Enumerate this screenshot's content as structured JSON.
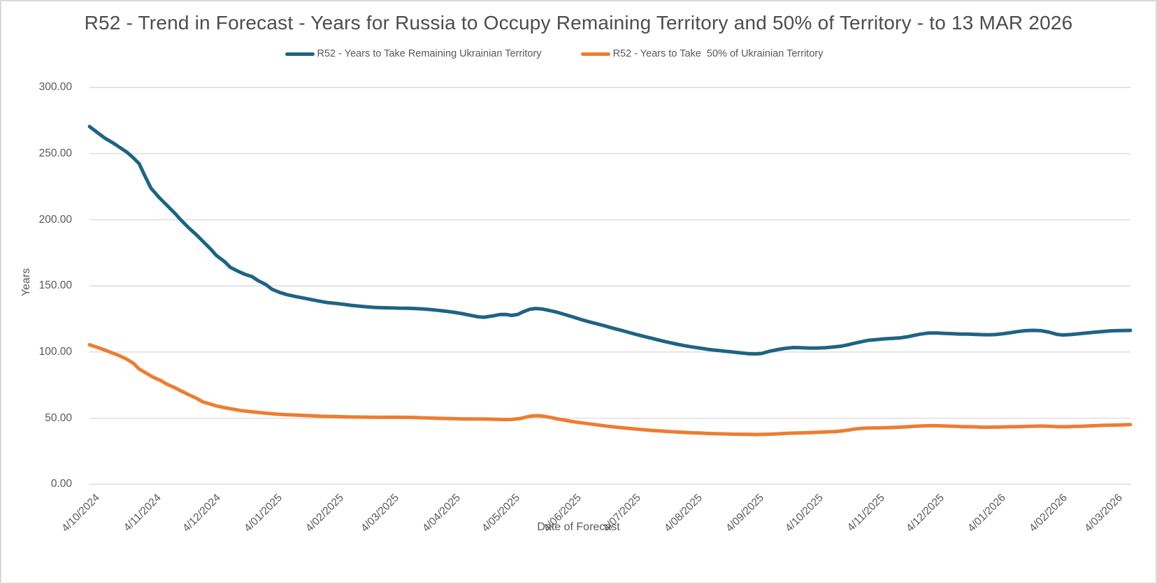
{
  "window": {
    "background": "#ffffff",
    "border_color": "#d9d9d9"
  },
  "chart_data": {
    "type": "line",
    "title": "R52 - Trend in Forecast - Years for Russia to Occupy Remaining Territory and 50% of Territory - to 13 MAR 2026",
    "xlabel": "Date of Forecast",
    "ylabel": "Years",
    "ylim": [
      0,
      300
    ],
    "grid": true,
    "legend_position": "top",
    "gridline_color": "#d9d9d9",
    "y_ticks": [
      {
        "label": "0.00",
        "value": 0
      },
      {
        "label": "50.00",
        "value": 50
      },
      {
        "label": "100.00",
        "value": 100
      },
      {
        "label": "150.00",
        "value": 150
      },
      {
        "label": "200.00",
        "value": 200
      },
      {
        "label": "250.00",
        "value": 250
      },
      {
        "label": "300.00",
        "value": 300
      }
    ],
    "x_total_days": 525,
    "x_ticks": [
      {
        "label": "4/10/2024",
        "day": 0
      },
      {
        "label": "4/11/2024",
        "day": 31
      },
      {
        "label": "4/12/2024",
        "day": 61
      },
      {
        "label": "4/01/2025",
        "day": 92
      },
      {
        "label": "4/02/2025",
        "day": 123
      },
      {
        "label": "4/03/2025",
        "day": 151
      },
      {
        "label": "4/04/2025",
        "day": 182
      },
      {
        "label": "4/05/2025",
        "day": 212
      },
      {
        "label": "4/06/2025",
        "day": 243
      },
      {
        "label": "4/07/2025",
        "day": 273
      },
      {
        "label": "4/08/2025",
        "day": 304
      },
      {
        "label": "4/09/2025",
        "day": 335
      },
      {
        "label": "4/10/2025",
        "day": 365
      },
      {
        "label": "4/11/2025",
        "day": 396
      },
      {
        "label": "4/12/2025",
        "day": 426
      },
      {
        "label": "4/01/2026",
        "day": 457
      },
      {
        "label": "4/02/2026",
        "day": 488
      },
      {
        "label": "4/03/2026",
        "day": 516
      }
    ],
    "series": [
      {
        "name": "R52 - Years to Take Remaining Ukrainian Territory",
        "color": "#1f6384",
        "points": [
          [
            0,
            270.5
          ],
          [
            4,
            266
          ],
          [
            8,
            261.5
          ],
          [
            12,
            258
          ],
          [
            16,
            254
          ],
          [
            19,
            251
          ],
          [
            22,
            247
          ],
          [
            25,
            242.5
          ],
          [
            28,
            233
          ],
          [
            31,
            224
          ],
          [
            35,
            217
          ],
          [
            39,
            211
          ],
          [
            43,
            205
          ],
          [
            46,
            200
          ],
          [
            50,
            194
          ],
          [
            54,
            188.5
          ],
          [
            57,
            184
          ],
          [
            61,
            178
          ],
          [
            64,
            173
          ],
          [
            68,
            168.5
          ],
          [
            71,
            164
          ],
          [
            75,
            161
          ],
          [
            78,
            159
          ],
          [
            82,
            157
          ],
          [
            85,
            154
          ],
          [
            89,
            151
          ],
          [
            92,
            147.5
          ],
          [
            96,
            145
          ],
          [
            100,
            143.2
          ],
          [
            104,
            141.9
          ],
          [
            108,
            140.8
          ],
          [
            112,
            139.6
          ],
          [
            116,
            138.4
          ],
          [
            120,
            137.4
          ],
          [
            124,
            136.8
          ],
          [
            128,
            136.1
          ],
          [
            132,
            135.3
          ],
          [
            136,
            134.7
          ],
          [
            140,
            134.1
          ],
          [
            144,
            133.7
          ],
          [
            148,
            133.5
          ],
          [
            152,
            133.4
          ],
          [
            156,
            133.2
          ],
          [
            160,
            133.1
          ],
          [
            164,
            132.9
          ],
          [
            168,
            132.6
          ],
          [
            172,
            132.1
          ],
          [
            176,
            131.5
          ],
          [
            180,
            130.8
          ],
          [
            184,
            130
          ],
          [
            188,
            129
          ],
          [
            192,
            127.8
          ],
          [
            196,
            126.6
          ],
          [
            199,
            126.3
          ],
          [
            203,
            127.2
          ],
          [
            207,
            128.3
          ],
          [
            210,
            128.4
          ],
          [
            213,
            127.7
          ],
          [
            216,
            128.4
          ],
          [
            219,
            130.6
          ],
          [
            222,
            132.3
          ],
          [
            225,
            132.9
          ],
          [
            228,
            132.6
          ],
          [
            232,
            131.4
          ],
          [
            236,
            130
          ],
          [
            240,
            128.2
          ],
          [
            244,
            126.4
          ],
          [
            248,
            124.5
          ],
          [
            252,
            122.8
          ],
          [
            256,
            121.3
          ],
          [
            260,
            119.7
          ],
          [
            264,
            118
          ],
          [
            268,
            116.5
          ],
          [
            272,
            114.8
          ],
          [
            276,
            113.2
          ],
          [
            280,
            111.7
          ],
          [
            284,
            110.2
          ],
          [
            288,
            108.7
          ],
          [
            292,
            107.3
          ],
          [
            296,
            106
          ],
          [
            300,
            104.8
          ],
          [
            304,
            103.8
          ],
          [
            308,
            102.9
          ],
          [
            312,
            102
          ],
          [
            316,
            101.3
          ],
          [
            320,
            100.7
          ],
          [
            324,
            100.1
          ],
          [
            328,
            99.4
          ],
          [
            332,
            98.8
          ],
          [
            336,
            98.6
          ],
          [
            339,
            98.9
          ],
          [
            343,
            100.6
          ],
          [
            347,
            101.8
          ],
          [
            351,
            102.8
          ],
          [
            355,
            103.4
          ],
          [
            359,
            103.3
          ],
          [
            363,
            103
          ],
          [
            367,
            103
          ],
          [
            371,
            103.3
          ],
          [
            375,
            103.8
          ],
          [
            379,
            104.4
          ],
          [
            382,
            105.3
          ],
          [
            386,
            106.7
          ],
          [
            390,
            108
          ],
          [
            393,
            108.9
          ],
          [
            397,
            109.4
          ],
          [
            401,
            110
          ],
          [
            405,
            110.3
          ],
          [
            409,
            110.7
          ],
          [
            413,
            111.6
          ],
          [
            416,
            112.6
          ],
          [
            419,
            113.5
          ],
          [
            423,
            114.3
          ],
          [
            427,
            114.4
          ],
          [
            431,
            114.1
          ],
          [
            435,
            113.9
          ],
          [
            439,
            113.6
          ],
          [
            443,
            113.5
          ],
          [
            447,
            113.3
          ],
          [
            451,
            113.1
          ],
          [
            454,
            113
          ],
          [
            457,
            113.2
          ],
          [
            460,
            113.7
          ],
          [
            464,
            114.5
          ],
          [
            468,
            115.4
          ],
          [
            472,
            116.1
          ],
          [
            476,
            116.4
          ],
          [
            480,
            116.1
          ],
          [
            484,
            115
          ],
          [
            488,
            113.3
          ],
          [
            491,
            112.9
          ],
          [
            495,
            113.2
          ],
          [
            499,
            113.8
          ],
          [
            503,
            114.4
          ],
          [
            507,
            115
          ],
          [
            511,
            115.5
          ],
          [
            515,
            116
          ],
          [
            519,
            116.2
          ],
          [
            525,
            116.3
          ]
        ]
      },
      {
        "name": "R52 - Years to Take  50% of Ukrainian Territory",
        "color": "#ed7d31",
        "points": [
          [
            0,
            105.5
          ],
          [
            4,
            103.5
          ],
          [
            8,
            101.3
          ],
          [
            11,
            99.6
          ],
          [
            14,
            97.9
          ],
          [
            18,
            95.2
          ],
          [
            22,
            91.7
          ],
          [
            25,
            87.2
          ],
          [
            29,
            83.7
          ],
          [
            32,
            81
          ],
          [
            36,
            78.4
          ],
          [
            39,
            75.7
          ],
          [
            43,
            73
          ],
          [
            46,
            70.7
          ],
          [
            50,
            67.7
          ],
          [
            54,
            65
          ],
          [
            57,
            62.4
          ],
          [
            61,
            60.6
          ],
          [
            64,
            59.2
          ],
          [
            68,
            58
          ],
          [
            71,
            57.1
          ],
          [
            76,
            55.8
          ],
          [
            82,
            54.8
          ],
          [
            88,
            53.9
          ],
          [
            93,
            53.2
          ],
          [
            99,
            52.6
          ],
          [
            105,
            52.3
          ],
          [
            111,
            51.9
          ],
          [
            117,
            51.4
          ],
          [
            123,
            51.2
          ],
          [
            129,
            51
          ],
          [
            135,
            50.8
          ],
          [
            141,
            50.7
          ],
          [
            147,
            50.6
          ],
          [
            153,
            50.7
          ],
          [
            159,
            50.6
          ],
          [
            165,
            50.4
          ],
          [
            171,
            50.1
          ],
          [
            177,
            49.8
          ],
          [
            183,
            49.6
          ],
          [
            189,
            49.4
          ],
          [
            195,
            49.4
          ],
          [
            201,
            49.3
          ],
          [
            205,
            49.1
          ],
          [
            209,
            48.9
          ],
          [
            213,
            49
          ],
          [
            217,
            49.6
          ],
          [
            220,
            50.7
          ],
          [
            223,
            51.6
          ],
          [
            226,
            51.9
          ],
          [
            229,
            51.4
          ],
          [
            233,
            50.4
          ],
          [
            236,
            49.4
          ],
          [
            240,
            48.4
          ],
          [
            244,
            47.3
          ],
          [
            248,
            46.5
          ],
          [
            252,
            45.7
          ],
          [
            256,
            44.9
          ],
          [
            260,
            44.1
          ],
          [
            264,
            43.4
          ],
          [
            268,
            42.8
          ],
          [
            272,
            42.2
          ],
          [
            276,
            41.7
          ],
          [
            280,
            41.2
          ],
          [
            284,
            40.7
          ],
          [
            288,
            40.3
          ],
          [
            292,
            39.9
          ],
          [
            296,
            39.5
          ],
          [
            300,
            39.2
          ],
          [
            304,
            38.9
          ],
          [
            308,
            38.7
          ],
          [
            312,
            38.4
          ],
          [
            316,
            38.2
          ],
          [
            320,
            38.1
          ],
          [
            324,
            37.9
          ],
          [
            328,
            37.8
          ],
          [
            332,
            37.7
          ],
          [
            336,
            37.6
          ],
          [
            340,
            37.7
          ],
          [
            344,
            37.9
          ],
          [
            348,
            38.2
          ],
          [
            352,
            38.5
          ],
          [
            356,
            38.7
          ],
          [
            360,
            38.9
          ],
          [
            364,
            39.1
          ],
          [
            368,
            39.3
          ],
          [
            372,
            39.6
          ],
          [
            376,
            39.9
          ],
          [
            380,
            40.4
          ],
          [
            383,
            41
          ],
          [
            386,
            41.8
          ],
          [
            389,
            42.2
          ],
          [
            392,
            42.5
          ],
          [
            396,
            42.6
          ],
          [
            400,
            42.7
          ],
          [
            404,
            42.9
          ],
          [
            408,
            43.1
          ],
          [
            412,
            43.4
          ],
          [
            416,
            43.8
          ],
          [
            420,
            44.1
          ],
          [
            424,
            44.4
          ],
          [
            428,
            44.2
          ],
          [
            432,
            44
          ],
          [
            436,
            43.8
          ],
          [
            440,
            43.6
          ],
          [
            444,
            43.5
          ],
          [
            448,
            43.3
          ],
          [
            452,
            43.1
          ],
          [
            456,
            43.2
          ],
          [
            460,
            43.3
          ],
          [
            464,
            43.5
          ],
          [
            468,
            43.6
          ],
          [
            472,
            43.7
          ],
          [
            476,
            43.9
          ],
          [
            480,
            44
          ],
          [
            484,
            43.8
          ],
          [
            488,
            43.6
          ],
          [
            492,
            43.5
          ],
          [
            496,
            43.7
          ],
          [
            500,
            43.8
          ],
          [
            504,
            44.1
          ],
          [
            508,
            44.3
          ],
          [
            512,
            44.6
          ],
          [
            516,
            44.7
          ],
          [
            520,
            44.9
          ],
          [
            525,
            45.1
          ]
        ]
      }
    ]
  }
}
